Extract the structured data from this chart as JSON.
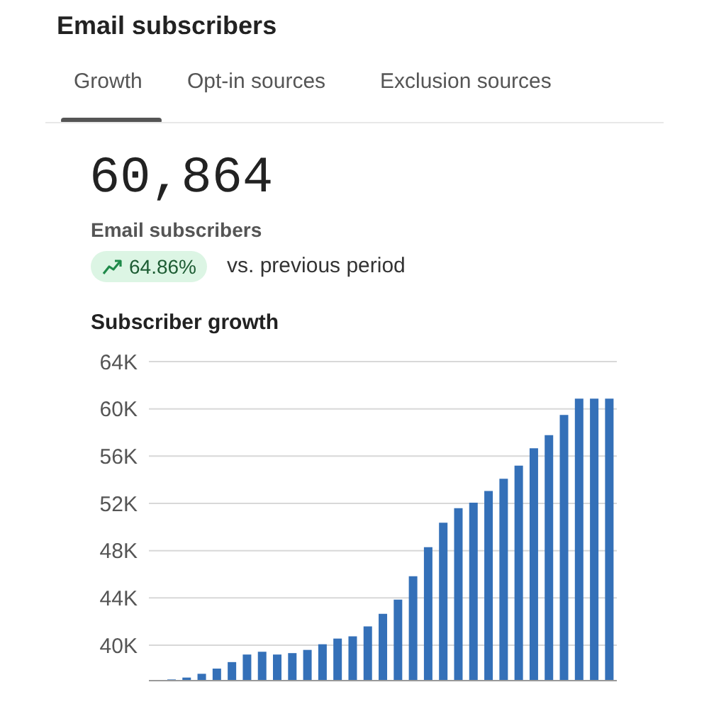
{
  "chart_data": {
    "type": "bar",
    "title": "Email subscribers",
    "subtitle": "Subscriber growth",
    "annotations": [
      "Growth",
      "Opt-in sources",
      "Exclusion sources",
      "60,864",
      "Email subscribers",
      "64.86%",
      "vs. previous period"
    ],
    "categories": [
      null,
      null,
      null,
      null,
      null,
      null,
      null,
      null,
      null,
      null,
      null,
      null,
      null,
      null,
      null,
      null,
      null,
      null,
      null,
      null,
      null,
      null,
      null,
      null,
      null,
      null,
      null,
      null,
      null,
      null,
      null
    ],
    "values": [
      37000,
      37100,
      37260,
      37580,
      38020,
      38570,
      39210,
      39440,
      39210,
      39330,
      39600,
      40080,
      40560,
      40750,
      41590,
      42660,
      43850,
      45830,
      48290,
      50360,
      51590,
      52060,
      53050,
      54090,
      55200,
      56670,
      57780,
      59480,
      60864,
      60864,
      60864
    ],
    "color": "#3470b8",
    "ylim": [
      37000,
      64000
    ],
    "yticks": [
      {
        "value": 40000,
        "label": "40K"
      },
      {
        "value": 44000,
        "label": "44K"
      },
      {
        "value": 48000,
        "label": "48K"
      },
      {
        "value": 52000,
        "label": "52K"
      },
      {
        "value": 56000,
        "label": "56K"
      },
      {
        "value": 60000,
        "label": "60K"
      },
      {
        "value": 64000,
        "label": "64K"
      }
    ],
    "grid": "y",
    "legend": false
  }
}
